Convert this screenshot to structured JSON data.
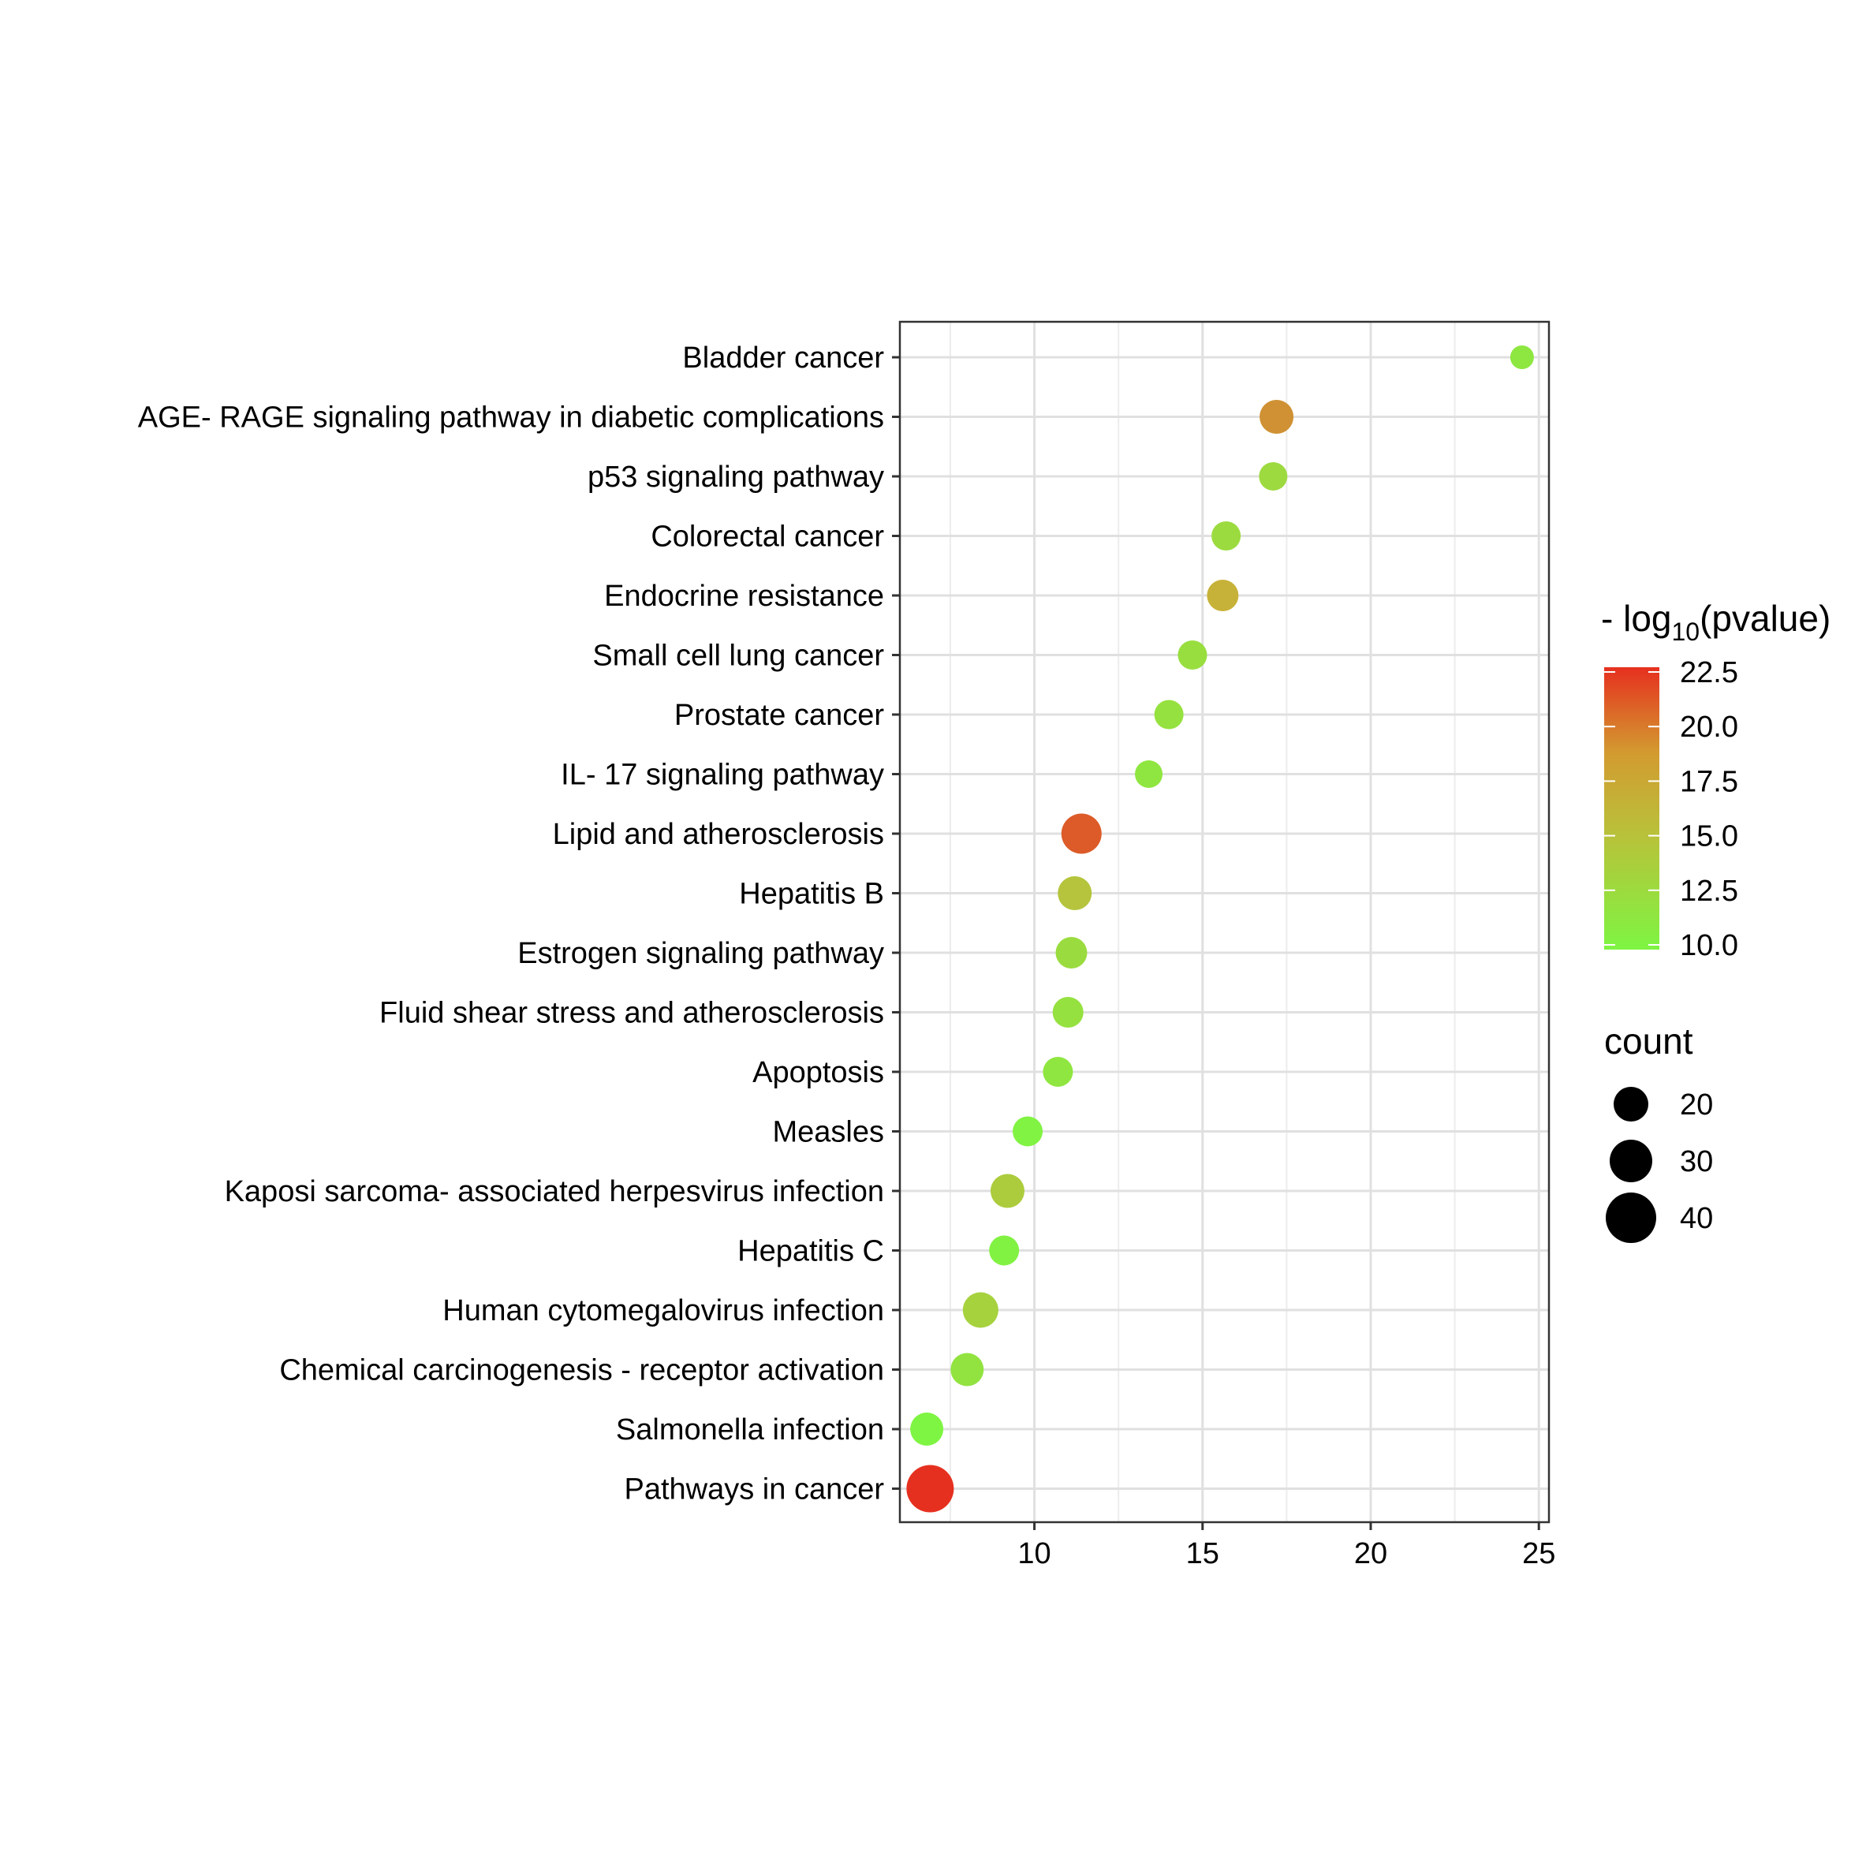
{
  "chart_data": {
    "type": "scatter",
    "title": "",
    "xlabel": "",
    "ylabel": "",
    "xlim": [
      6,
      25.3
    ],
    "x_ticks": [
      10,
      15,
      20,
      25
    ],
    "x_tick_labels": [
      "10",
      "15",
      "20",
      "25"
    ],
    "grid": true,
    "legend_position": "right",
    "categories": [
      "Bladder cancer",
      "AGE- RAGE signaling pathway in diabetic complications",
      "p53 signaling pathway",
      "Colorectal cancer",
      "Endocrine resistance",
      "Small cell lung cancer",
      "Prostate cancer",
      "IL- 17 signaling pathway",
      "Lipid and atherosclerosis",
      "Hepatitis B",
      "Estrogen signaling pathway",
      "Fluid shear stress and atherosclerosis",
      "Apoptosis",
      "Measles",
      "Kaposi sarcoma- associated herpesvirus infection",
      "Hepatitis C",
      "Human cytomegalovirus infection",
      "Chemical carcinogenesis -  receptor activation",
      "Salmonella infection",
      "Pathways in cancer"
    ],
    "x": [
      24.5,
      17.2,
      17.1,
      15.7,
      15.6,
      14.7,
      14.0,
      13.4,
      11.4,
      11.2,
      11.1,
      11.0,
      10.7,
      9.8,
      9.2,
      9.1,
      8.4,
      8.0,
      6.8,
      6.9
    ],
    "pvalue_log": [
      11.2,
      17.5,
      12.4,
      12.3,
      15.8,
      12.0,
      11.8,
      11.3,
      20.3,
      14.3,
      12.2,
      11.8,
      11.3,
      10.2,
      13.6,
      10.3,
      13.1,
      11.6,
      10.0,
      22.5
    ],
    "count": [
      14,
      27,
      20,
      21,
      24,
      21,
      21,
      19,
      35,
      27,
      24,
      23,
      22,
      22,
      27,
      22,
      29,
      26,
      26,
      44
    ],
    "color_legend": {
      "title_prefix": "- log",
      "title_subscript": "10",
      "title_suffix": "(pvalue)",
      "range": [
        10.0,
        22.5
      ],
      "ticks": [
        22.5,
        20.0,
        17.5,
        15.0,
        12.5,
        10.0
      ],
      "tick_labels": [
        "22.5",
        "20.0",
        "17.5",
        "15.0",
        "12.5",
        "10.0"
      ],
      "low_color": "#7ef542",
      "mid_color": "#c6b53a",
      "high_color": "#e6301f"
    },
    "size_legend": {
      "title": "count",
      "values": [
        20,
        30,
        40
      ],
      "labels": [
        "20",
        "30",
        "40"
      ]
    }
  }
}
